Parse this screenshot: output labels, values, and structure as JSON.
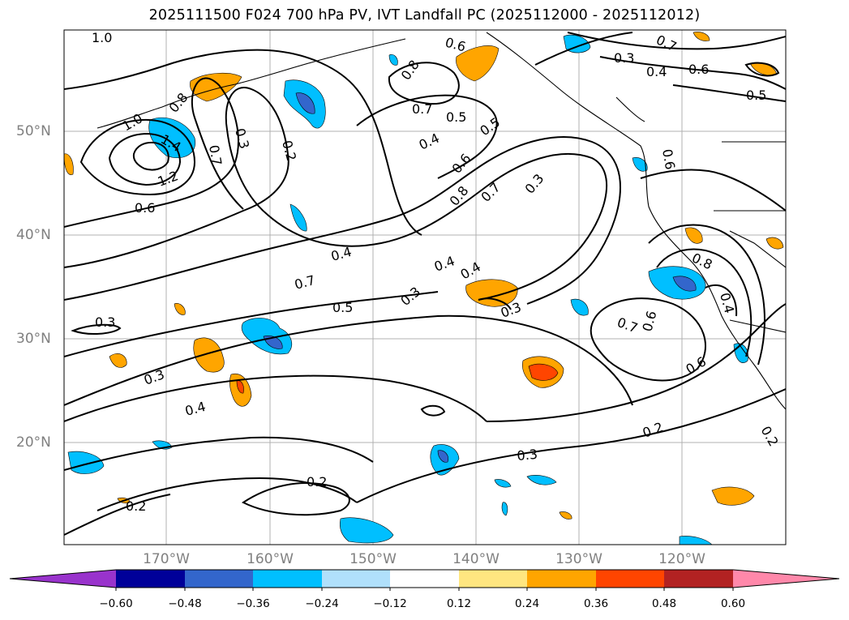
{
  "title": "2025111500 F024 700 hPa PV, IVT Landfall PC (2025112000 - 2025112012)",
  "map": {
    "lat_labels": [
      "50°N",
      "40°N",
      "30°N",
      "20°N"
    ],
    "lon_labels": [
      "170°W",
      "160°W",
      "150°W",
      "140°W",
      "130°W",
      "120°W"
    ],
    "contour_labels": [
      "1.0",
      "0.6",
      "0.7",
      "0.3",
      "0.4",
      "0.6",
      "0.5",
      "0.8",
      "0.7",
      "0.5",
      "0.8",
      "1.0",
      "1.4",
      "0.7",
      "0.3",
      "0.2",
      "0.5",
      "0.4",
      "0.6",
      "0.6",
      "0.8",
      "0.7",
      "0.3",
      "1.2",
      "0.6",
      "0.7",
      "0.4",
      "0.5",
      "0.4",
      "0.4",
      "0.3",
      "0.3",
      "0.3",
      "0.8",
      "0.4",
      "0.7",
      "0.6",
      "0.6",
      "0.3",
      "0.4",
      "0.2",
      "0.3",
      "0.2",
      "0.2",
      "0.2"
    ]
  },
  "colorbar": {
    "ticks": [
      "−0.60",
      "−0.48",
      "−0.36",
      "−0.24",
      "−0.12",
      "0.12",
      "0.24",
      "0.36",
      "0.48",
      "0.60"
    ],
    "colors": [
      "#9933cc",
      "#000099",
      "#3366cc",
      "#00bfff",
      "#b0e0fb",
      "#ffffff",
      "#ffe680",
      "#ffa500",
      "#ff4500",
      "#b22222",
      "#ff88aa"
    ]
  }
}
